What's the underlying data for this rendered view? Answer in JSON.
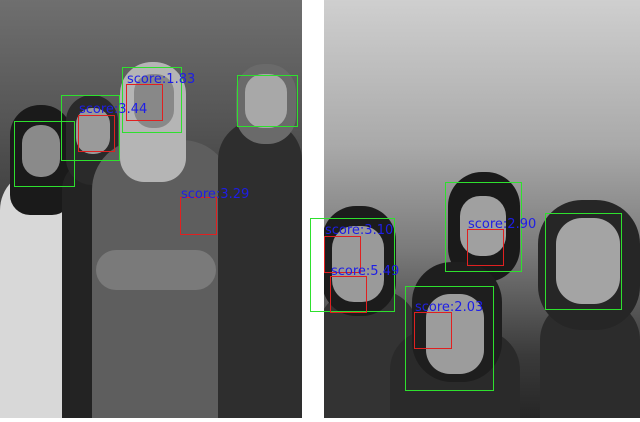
{
  "image": {
    "description_colors": {
      "face_box": "#2ee02e",
      "inner_box": "#e02020",
      "score_text": "#1e1ee6"
    }
  },
  "detections": [
    {
      "id": "d1",
      "score_label": "score:1.83"
    },
    {
      "id": "d2",
      "score_label": "score:3.44"
    },
    {
      "id": "d3",
      "score_label": "score:3.29"
    },
    {
      "id": "d4",
      "score_label": "score:3.10"
    },
    {
      "id": "d5",
      "score_label": "score:5.49"
    },
    {
      "id": "d6",
      "score_label": "score:2.90"
    },
    {
      "id": "d7",
      "score_label": "score:2.03"
    }
  ]
}
